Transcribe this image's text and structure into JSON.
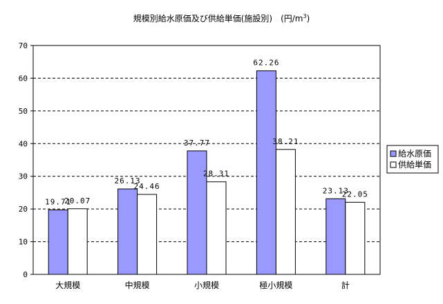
{
  "chart_data": {
    "type": "bar",
    "title": "規模別給水原価及び供給単価(施設別)　(円/m",
    "title_sup": "3",
    "title_suffix": ")",
    "categories": [
      "大規模",
      "中規模",
      "小規模",
      "極小規模",
      "計"
    ],
    "series": [
      {
        "name": "給水原価",
        "values": [
          19.71,
          26.13,
          37.77,
          62.26,
          23.13
        ],
        "color": "#9999ff"
      },
      {
        "name": "供給単価",
        "values": [
          20.07,
          24.46,
          28.31,
          38.21,
          22.05
        ],
        "color": "#ffffff"
      }
    ],
    "value_labels": [
      [
        "19.71",
        "26.13",
        "37.77",
        "62.26",
        "23.13"
      ],
      [
        "20.07",
        "24.46",
        "28.31",
        "38.21",
        "22.05"
      ]
    ],
    "ylim": [
      0,
      70
    ],
    "yticks": [
      0,
      10,
      20,
      30,
      40,
      50,
      60,
      70
    ],
    "grid": true,
    "grid_style": "dashed",
    "legend_position": "right",
    "xlabel": "",
    "ylabel": ""
  }
}
